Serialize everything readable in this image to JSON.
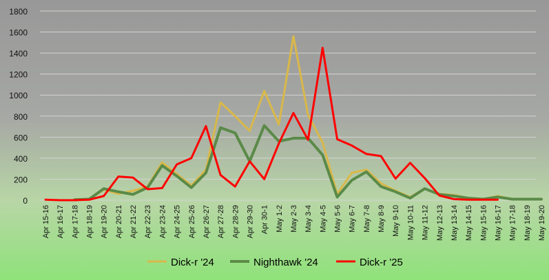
{
  "chart_data": {
    "type": "line",
    "title": "",
    "xlabel": "",
    "ylabel": "",
    "ylim": [
      0,
      1800
    ],
    "yticks": [
      0,
      200,
      400,
      600,
      800,
      1000,
      1200,
      1400,
      1600,
      1800
    ],
    "grid": true,
    "legend_position": "bottom",
    "categories": [
      "Apr 15-16",
      "Apr 16-17",
      "Apr 17-18",
      "Apr 18-19",
      "Apr 19-20",
      "Apr 20-21",
      "Apr 21-22",
      "Apr 22-23",
      "Apr 23-24",
      "Apr 24-25",
      "Apr 25-26",
      "Apr 26-27",
      "Apr 27-28",
      "Apr 28-29",
      "Apr 29-30",
      "Apr 30-1",
      "May 1-2",
      "May 2-3",
      "May 3-4",
      "May 4-5",
      "May 5-6",
      "May 6-7",
      "May 7-8",
      "May 8-9",
      "May 9-10",
      "May 10-11",
      "May 11-12",
      "May 12-13",
      "May 13-14",
      "May 14-15",
      "May 15-16",
      "May 16-17",
      "May 17-18",
      "May 18-19",
      "May 19-20"
    ],
    "series": [
      {
        "name": "Dick-r '24",
        "color": "#D9B84A",
        "values": [
          null,
          null,
          5,
          10,
          100,
          60,
          90,
          130,
          360,
          250,
          140,
          290,
          930,
          800,
          660,
          1040,
          720,
          1560,
          810,
          550,
          60,
          260,
          290,
          160,
          90,
          30,
          110,
          60,
          50,
          20,
          10,
          40,
          10,
          10,
          10
        ]
      },
      {
        "name": "Nighthawk '24",
        "color": "#5A8A48",
        "values": [
          null,
          null,
          5,
          10,
          110,
          80,
          55,
          120,
          330,
          230,
          120,
          260,
          690,
          640,
          370,
          710,
          560,
          590,
          590,
          430,
          30,
          190,
          270,
          130,
          80,
          20,
          110,
          55,
          40,
          20,
          10,
          30,
          10,
          10,
          10
        ]
      },
      {
        "name": "Dick-r '25",
        "color": "#FF0000",
        "values": [
          5,
          0,
          0,
          5,
          40,
          225,
          215,
          105,
          115,
          340,
          400,
          705,
          240,
          130,
          370,
          200,
          540,
          830,
          575,
          1450,
          580,
          520,
          440,
          420,
          205,
          355,
          210,
          45,
          10,
          5,
          5,
          5,
          null,
          null,
          null
        ]
      }
    ]
  }
}
